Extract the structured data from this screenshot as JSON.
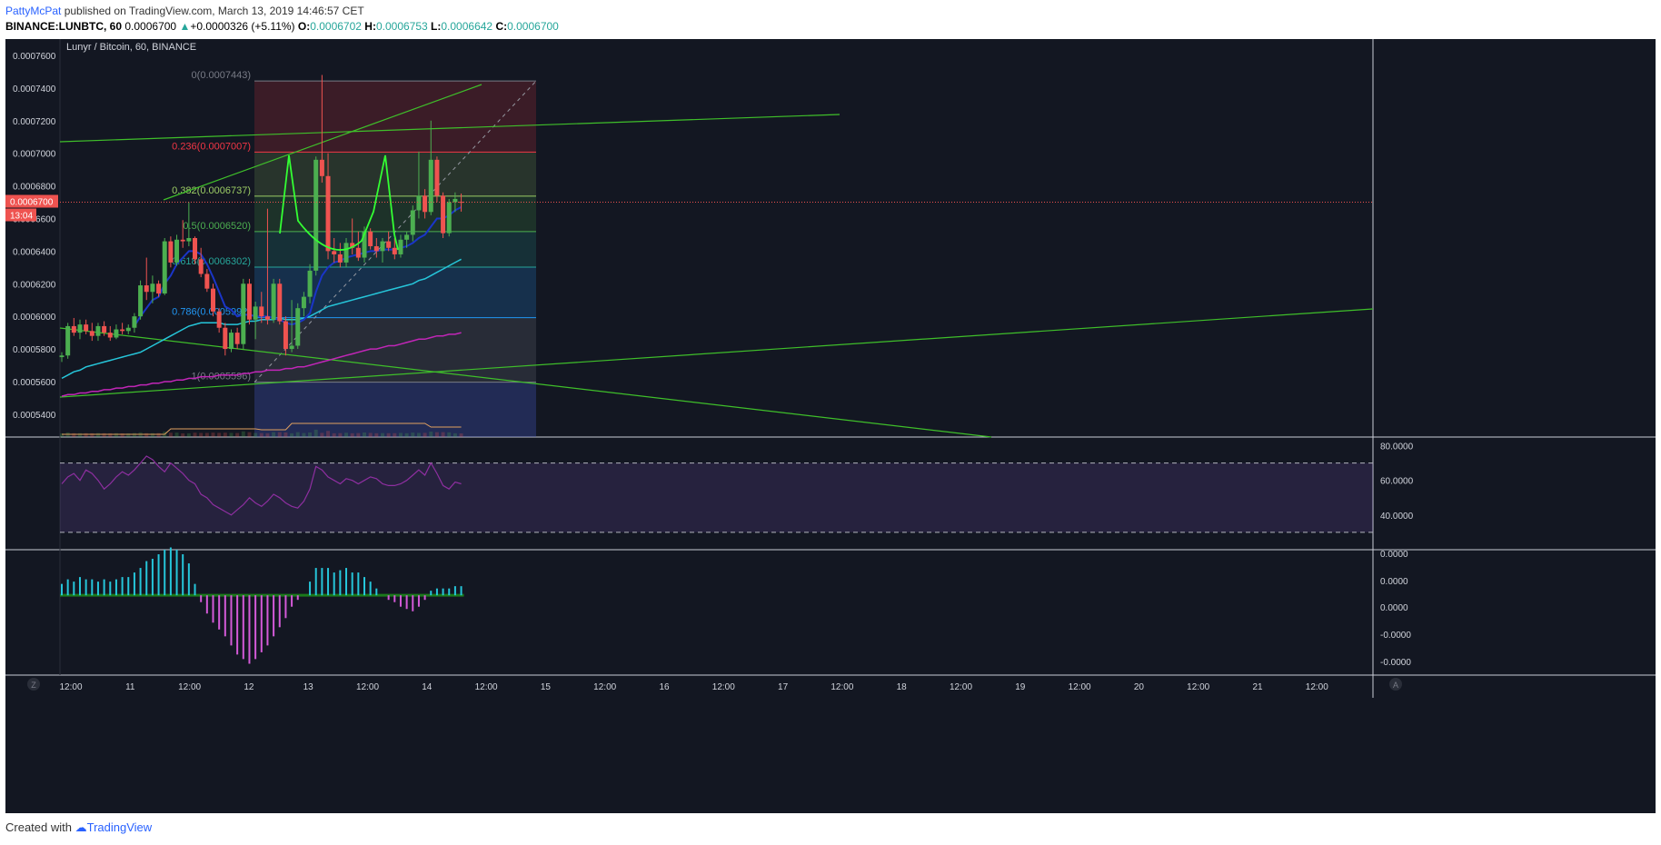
{
  "header": {
    "author": "PattyMcPat",
    "published_text": "published on TradingView.com, March 13, 2019 14:46:57 CET",
    "symbol": "BINANCE:LUNBTC, 60",
    "last_price": "0.0006700",
    "change": "+0.0000326 (+5.11%)",
    "open_label": "O:",
    "open": "0.0006702",
    "high_label": "H:",
    "high": "0.0006753",
    "low_label": "L:",
    "low": "0.0006642",
    "close_label": "C:",
    "close": "0.0006700"
  },
  "chart_title": "Lunyr / Bitcoin, 60, BINANCE",
  "price_tag": {
    "price": "0.0006700",
    "countdown": "13:04"
  },
  "colors": {
    "background": "#131722",
    "up": "#4caf50",
    "down": "#ef5350",
    "fib_0": "#787b86",
    "fib_236": "#f23645",
    "fib_382": "#9ccc65",
    "fib_5": "#4caf50",
    "fib_618": "#26a69a",
    "fib_786": "#2196f3",
    "fib_1": "#787b86",
    "ema_fast": "#1a35c8",
    "ema_mid": "#26c6da",
    "ema_slow": "#c126b7",
    "trendline": "#3fbf2a",
    "rsi": "#8e2fa0",
    "hist_pos": "#26c6da",
    "hist_neg": "#d45ad8"
  },
  "footer": {
    "created_with": "Created with",
    "brand": "TradingView"
  },
  "chart_data": [
    {
      "type": "candlestick",
      "pane": "price",
      "title": "Lunyr / Bitcoin, 60, BINANCE",
      "ylim": [
        0.000526,
        0.00077
      ],
      "y_ticks": [
        "0.0007600",
        "0.0007400",
        "0.0007200",
        "0.0007000",
        "0.0006800",
        "0.0006600",
        "0.0006400",
        "0.0006200",
        "0.0006000",
        "0.0005800",
        "0.0005600",
        "0.0005400"
      ],
      "x_ticks": [
        "12:00",
        "11",
        "12:00",
        "12",
        "13",
        "12:00",
        "14",
        "12:00",
        "15",
        "12:00",
        "16",
        "12:00",
        "17",
        "12:00",
        "18",
        "12:00",
        "19",
        "12:00",
        "20",
        "12:00",
        "21",
        "12:00"
      ],
      "candles": [
        {
          "o": 0.000575,
          "h": 0.000578,
          "l": 0.000572,
          "c": 0.000576
        },
        {
          "o": 0.000576,
          "h": 0.000596,
          "l": 0.000574,
          "c": 0.000594
        },
        {
          "o": 0.000594,
          "h": 0.000599,
          "l": 0.000588,
          "c": 0.00059
        },
        {
          "o": 0.00059,
          "h": 0.000598,
          "l": 0.000586,
          "c": 0.000595
        },
        {
          "o": 0.000595,
          "h": 0.000598,
          "l": 0.000589,
          "c": 0.000591
        },
        {
          "o": 0.000591,
          "h": 0.000596,
          "l": 0.000585,
          "c": 0.000588
        },
        {
          "o": 0.000588,
          "h": 0.000596,
          "l": 0.000585,
          "c": 0.000594
        },
        {
          "o": 0.000594,
          "h": 0.000597,
          "l": 0.000588,
          "c": 0.00059
        },
        {
          "o": 0.00059,
          "h": 0.000594,
          "l": 0.000585,
          "c": 0.000587
        },
        {
          "o": 0.000587,
          "h": 0.000595,
          "l": 0.000586,
          "c": 0.000592
        },
        {
          "o": 0.000592,
          "h": 0.000596,
          "l": 0.000589,
          "c": 0.000591
        },
        {
          "o": 0.000591,
          "h": 0.000595,
          "l": 0.000589,
          "c": 0.000593
        },
        {
          "o": 0.000593,
          "h": 0.000602,
          "l": 0.00059,
          "c": 0.0006
        },
        {
          "o": 0.0006,
          "h": 0.000622,
          "l": 0.000598,
          "c": 0.000619
        },
        {
          "o": 0.000619,
          "h": 0.000636,
          "l": 0.00061,
          "c": 0.000615
        },
        {
          "o": 0.000615,
          "h": 0.000625,
          "l": 0.000608,
          "c": 0.00062
        },
        {
          "o": 0.00062,
          "h": 0.000622,
          "l": 0.000612,
          "c": 0.000614
        },
        {
          "o": 0.000614,
          "h": 0.000648,
          "l": 0.000613,
          "c": 0.000646
        },
        {
          "o": 0.000646,
          "h": 0.000649,
          "l": 0.00063,
          "c": 0.000633
        },
        {
          "o": 0.000633,
          "h": 0.00065,
          "l": 0.000631,
          "c": 0.000647
        },
        {
          "o": 0.000647,
          "h": 0.000659,
          "l": 0.000642,
          "c": 0.000646
        },
        {
          "o": 0.000646,
          "h": 0.00067,
          "l": 0.000643,
          "c": 0.000648
        },
        {
          "o": 0.000648,
          "h": 0.000649,
          "l": 0.000632,
          "c": 0.000635
        },
        {
          "o": 0.000635,
          "h": 0.000642,
          "l": 0.000624,
          "c": 0.000626
        },
        {
          "o": 0.000626,
          "h": 0.000629,
          "l": 0.000615,
          "c": 0.000617
        },
        {
          "o": 0.000617,
          "h": 0.00062,
          "l": 0.0006,
          "c": 0.000603
        },
        {
          "o": 0.000603,
          "h": 0.000605,
          "l": 0.00059,
          "c": 0.000593
        },
        {
          "o": 0.000593,
          "h": 0.000596,
          "l": 0.000576,
          "c": 0.00058
        },
        {
          "o": 0.00058,
          "h": 0.000592,
          "l": 0.000578,
          "c": 0.00059
        },
        {
          "o": 0.00059,
          "h": 0.000593,
          "l": 0.00058,
          "c": 0.000583
        },
        {
          "o": 0.000583,
          "h": 0.000623,
          "l": 0.00058,
          "c": 0.00062
        },
        {
          "o": 0.00062,
          "h": 0.000623,
          "l": 0.000595,
          "c": 0.000598
        },
        {
          "o": 0.000598,
          "h": 0.000609,
          "l": 0.000586,
          "c": 0.000606
        },
        {
          "o": 0.000606,
          "h": 0.000615,
          "l": 0.000596,
          "c": 0.0006
        },
        {
          "o": 0.0006,
          "h": 0.000666,
          "l": 0.000595,
          "c": 0.000598
        },
        {
          "o": 0.000598,
          "h": 0.000623,
          "l": 0.000596,
          "c": 0.00062
        },
        {
          "o": 0.00062,
          "h": 0.000623,
          "l": 0.000595,
          "c": 0.000597
        },
        {
          "o": 0.000597,
          "h": 0.0006,
          "l": 0.000576,
          "c": 0.00058
        },
        {
          "o": 0.00058,
          "h": 0.00061,
          "l": 0.000578,
          "c": 0.000582
        },
        {
          "o": 0.000582,
          "h": 0.000608,
          "l": 0.00058,
          "c": 0.000605
        },
        {
          "o": 0.000605,
          "h": 0.000615,
          "l": 0.0006,
          "c": 0.000612
        },
        {
          "o": 0.000612,
          "h": 0.000632,
          "l": 0.000608,
          "c": 0.000628
        },
        {
          "o": 0.000628,
          "h": 0.000698,
          "l": 0.000625,
          "c": 0.000696
        },
        {
          "o": 0.000696,
          "h": 0.000748,
          "l": 0.000682,
          "c": 0.000686
        },
        {
          "o": 0.000686,
          "h": 0.0007,
          "l": 0.000635,
          "c": 0.00064
        },
        {
          "o": 0.00064,
          "h": 0.000648,
          "l": 0.000633,
          "c": 0.000638
        },
        {
          "o": 0.000638,
          "h": 0.000645,
          "l": 0.00063,
          "c": 0.000633
        },
        {
          "o": 0.000633,
          "h": 0.000648,
          "l": 0.00063,
          "c": 0.000645
        },
        {
          "o": 0.000645,
          "h": 0.00066,
          "l": 0.000638,
          "c": 0.000642
        },
        {
          "o": 0.000642,
          "h": 0.000652,
          "l": 0.000634,
          "c": 0.000636
        },
        {
          "o": 0.000636,
          "h": 0.000655,
          "l": 0.000633,
          "c": 0.000652
        },
        {
          "o": 0.000652,
          "h": 0.000654,
          "l": 0.000641,
          "c": 0.000643
        },
        {
          "o": 0.000643,
          "h": 0.000648,
          "l": 0.000636,
          "c": 0.00064
        },
        {
          "o": 0.00064,
          "h": 0.000648,
          "l": 0.000633,
          "c": 0.000646
        },
        {
          "o": 0.000646,
          "h": 0.000652,
          "l": 0.00064,
          "c": 0.000642
        },
        {
          "o": 0.000642,
          "h": 0.000648,
          "l": 0.000635,
          "c": 0.000638
        },
        {
          "o": 0.000638,
          "h": 0.00065,
          "l": 0.000636,
          "c": 0.000647
        },
        {
          "o": 0.000647,
          "h": 0.000652,
          "l": 0.000642,
          "c": 0.00065
        },
        {
          "o": 0.00065,
          "h": 0.000668,
          "l": 0.000646,
          "c": 0.000665
        },
        {
          "o": 0.000665,
          "h": 0.000701,
          "l": 0.00066,
          "c": 0.000674
        },
        {
          "o": 0.000674,
          "h": 0.000678,
          "l": 0.00066,
          "c": 0.000664
        },
        {
          "o": 0.000664,
          "h": 0.00072,
          "l": 0.000662,
          "c": 0.000696
        },
        {
          "o": 0.000696,
          "h": 0.000698,
          "l": 0.00067,
          "c": 0.000674
        },
        {
          "o": 0.000674,
          "h": 0.000676,
          "l": 0.000648,
          "c": 0.000651
        },
        {
          "o": 0.000651,
          "h": 0.000672,
          "l": 0.000649,
          "c": 0.00067
        },
        {
          "o": 0.00067,
          "h": 0.000676,
          "l": 0.000664,
          "c": 0.000672
        },
        {
          "o": 0.0006702,
          "h": 0.0006753,
          "l": 0.0006642,
          "c": 0.00067
        }
      ],
      "ema_fast": [
        null,
        null,
        null,
        null,
        null,
        null,
        null,
        null,
        null,
        null,
        null,
        null,
        0.000594,
        0.0006,
        0.000605,
        0.00061,
        0.000612,
        0.00062,
        0.000625,
        0.000632,
        0.000636,
        0.00064,
        0.00064,
        0.000638,
        0.000632,
        0.000624,
        0.000615,
        0.000606,
        0.000604,
        0.0006,
        0.000601,
        0.000601,
        0.0006,
        0.0006,
        0.0006,
        0.000599,
        0.000598,
        0.000596,
        0.000595,
        0.000596,
        0.000598,
        0.000602,
        0.000615,
        0.000625,
        0.00063,
        0.000633,
        0.000634,
        0.000636,
        0.000637,
        0.000638,
        0.000639,
        0.00064,
        0.00064,
        0.000641,
        0.000641,
        0.000641,
        0.000642,
        0.000643,
        0.000645,
        0.000648,
        0.00065,
        0.000655,
        0.00066,
        0.00066,
        0.000662,
        0.000665,
        0.000667
      ],
      "ema_mid": [
        0.000562,
        0.000564,
        0.000566,
        0.000567,
        0.000569,
        0.00057,
        0.000571,
        0.000572,
        0.000573,
        0.000574,
        0.000575,
        0.000576,
        0.000577,
        0.000578,
        0.00058,
        0.000582,
        0.000584,
        0.000586,
        0.000588,
        0.00059,
        0.000592,
        0.000594,
        0.000595,
        0.000596,
        0.000596,
        0.000596,
        0.000596,
        0.000595,
        0.000595,
        0.000595,
        0.000596,
        0.000597,
        0.000597,
        0.000598,
        0.000598,
        0.000598,
        0.000599,
        0.000598,
        0.000598,
        0.000598,
        0.000599,
        0.0006,
        0.000602,
        0.000604,
        0.000606,
        0.000607,
        0.000608,
        0.000609,
        0.00061,
        0.000611,
        0.000612,
        0.000613,
        0.000614,
        0.000615,
        0.000616,
        0.000617,
        0.000618,
        0.000619,
        0.00062,
        0.000622,
        0.000623,
        0.000625,
        0.000627,
        0.000629,
        0.000631,
        0.000633,
        0.000635
      ],
      "ema_slow": [
        0.000551,
        0.000552,
        0.000552,
        0.000553,
        0.000553,
        0.000554,
        0.000554,
        0.000555,
        0.000555,
        0.000556,
        0.000556,
        0.000557,
        0.000557,
        0.000558,
        0.000558,
        0.000559,
        0.000559,
        0.00056,
        0.00056,
        0.000561,
        0.000561,
        0.000562,
        0.000562,
        0.000563,
        0.000563,
        0.000563,
        0.000564,
        0.000564,
        0.000564,
        0.000564,
        0.000565,
        0.000565,
        0.000566,
        0.000566,
        0.000567,
        0.000567,
        0.000567,
        0.000568,
        0.000568,
        0.000569,
        0.000569,
        0.00057,
        0.000571,
        0.000572,
        0.000573,
        0.000574,
        0.000575,
        0.000576,
        0.000577,
        0.000578,
        0.000579,
        0.00058,
        0.00058,
        0.000581,
        0.000582,
        0.000582,
        0.000583,
        0.000584,
        0.000585,
        0.000586,
        0.000586,
        0.000587,
        0.000588,
        0.000588,
        0.000589,
        0.000589,
        0.00059
      ],
      "fib_levels": [
        {
          "label": "0(0.0007443)",
          "value": 0.0007443
        },
        {
          "label": "0.236(0.0007007)",
          "value": 0.0007007
        },
        {
          "label": "0.382(0.0006737)",
          "value": 0.0006737
        },
        {
          "label": "0.5(0.0006520)",
          "value": 0.000652
        },
        {
          "label": "0.618(0.0006302)",
          "value": 0.0006302
        },
        {
          "label": "0.786(0.0005992)",
          "value": 0.0005992
        },
        {
          "label": "1(0.0005596)",
          "value": 0.0005596
        }
      ],
      "last_price": 0.00067
    },
    {
      "type": "line",
      "pane": "rsi",
      "ylim": [
        20,
        85
      ],
      "y_ticks": [
        "80.0000",
        "60.0000",
        "40.0000"
      ],
      "bands": [
        70,
        30
      ],
      "values": [
        58,
        62,
        64,
        60,
        66,
        64,
        60,
        55,
        58,
        62,
        65,
        63,
        66,
        70,
        74,
        72,
        68,
        65,
        70,
        67,
        64,
        60,
        58,
        52,
        50,
        46,
        44,
        42,
        40,
        43,
        46,
        50,
        47,
        45,
        48,
        52,
        50,
        47,
        45,
        44,
        48,
        55,
        68,
        66,
        62,
        60,
        58,
        61,
        60,
        58,
        60,
        62,
        61,
        58,
        57,
        57,
        58,
        60,
        63,
        66,
        63,
        70,
        64,
        57,
        55,
        59,
        58
      ]
    },
    {
      "type": "bar",
      "pane": "oscillator",
      "ylim": [
        -3.5e-07,
        2e-07
      ],
      "y_ticks": [
        "0.0000",
        "0.0000",
        "0.0000",
        "-0.0000",
        "-0.0000"
      ],
      "values": [
        0.05,
        0.07,
        0.06,
        0.08,
        0.07,
        0.07,
        0.06,
        0.07,
        0.06,
        0.07,
        0.08,
        0.08,
        0.1,
        0.12,
        0.15,
        0.16,
        0.18,
        0.2,
        0.21,
        0.2,
        0.18,
        0.14,
        0.05,
        -0.03,
        -0.08,
        -0.12,
        -0.15,
        -0.18,
        -0.22,
        -0.26,
        -0.28,
        -0.3,
        -0.28,
        -0.25,
        -0.22,
        -0.18,
        -0.14,
        -0.1,
        -0.05,
        -0.02,
        0.0,
        0.06,
        0.12,
        0.12,
        0.12,
        0.1,
        0.11,
        0.12,
        0.1,
        0.1,
        0.08,
        0.06,
        0.03,
        0.0,
        -0.02,
        -0.03,
        -0.05,
        -0.06,
        -0.07,
        -0.05,
        -0.02,
        0.02,
        0.03,
        0.03,
        0.03,
        0.04,
        0.04
      ]
    }
  ],
  "time_axis_corner": "Z",
  "auto_scale_corner": "A"
}
